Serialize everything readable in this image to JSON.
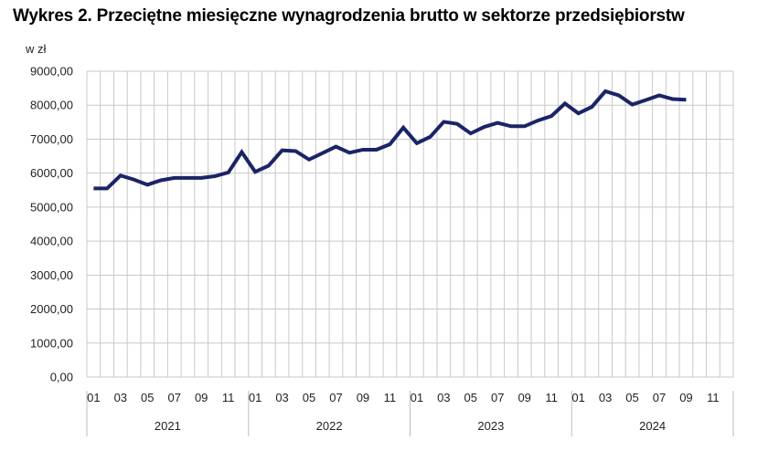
{
  "title": "Wykres 2. Przeciętne miesięczne wynagrodzenia brutto w sektorze przedsiębiorstw",
  "chart_data": {
    "type": "line",
    "ylabel": "w zł",
    "ylim": [
      0,
      9000
    ],
    "y_ticks": [
      "0,00",
      "1000,00",
      "2000,00",
      "3000,00",
      "4000,00",
      "5000,00",
      "6000,00",
      "7000,00",
      "8000,00",
      "9000,00"
    ],
    "grid": "vertical lines per month, horizontal lines per 1000",
    "years": [
      "2021",
      "2022",
      "2023",
      "2024"
    ],
    "month_ticks": [
      "01",
      "03",
      "05",
      "07",
      "09",
      "11"
    ],
    "x": [
      "2021-01",
      "2021-02",
      "2021-03",
      "2021-04",
      "2021-05",
      "2021-06",
      "2021-07",
      "2021-08",
      "2021-09",
      "2021-10",
      "2021-11",
      "2021-12",
      "2022-01",
      "2022-02",
      "2022-03",
      "2022-04",
      "2022-05",
      "2022-06",
      "2022-07",
      "2022-08",
      "2022-09",
      "2022-10",
      "2022-11",
      "2022-12",
      "2023-01",
      "2023-02",
      "2023-03",
      "2023-04",
      "2023-05",
      "2023-06",
      "2023-07",
      "2023-08",
      "2023-09",
      "2023-10",
      "2023-11",
      "2023-12",
      "2024-01",
      "2024-02",
      "2024-03",
      "2024-04",
      "2024-05",
      "2024-06",
      "2024-07",
      "2024-08",
      "2024-09"
    ],
    "series": [
      {
        "values": [
          5550,
          5550,
          5930,
          5810,
          5660,
          5790,
          5860,
          5860,
          5860,
          5910,
          6020,
          6620,
          6040,
          6220,
          6670,
          6650,
          6400,
          6590,
          6780,
          6600,
          6690,
          6690,
          6850,
          7340,
          6880,
          7070,
          7510,
          7450,
          7170,
          7360,
          7480,
          7380,
          7380,
          7550,
          7680,
          8050,
          7760,
          7950,
          8410,
          8290,
          8020,
          8150,
          8290,
          8180,
          8160
        ],
        "color": "#1a2466"
      }
    ]
  }
}
